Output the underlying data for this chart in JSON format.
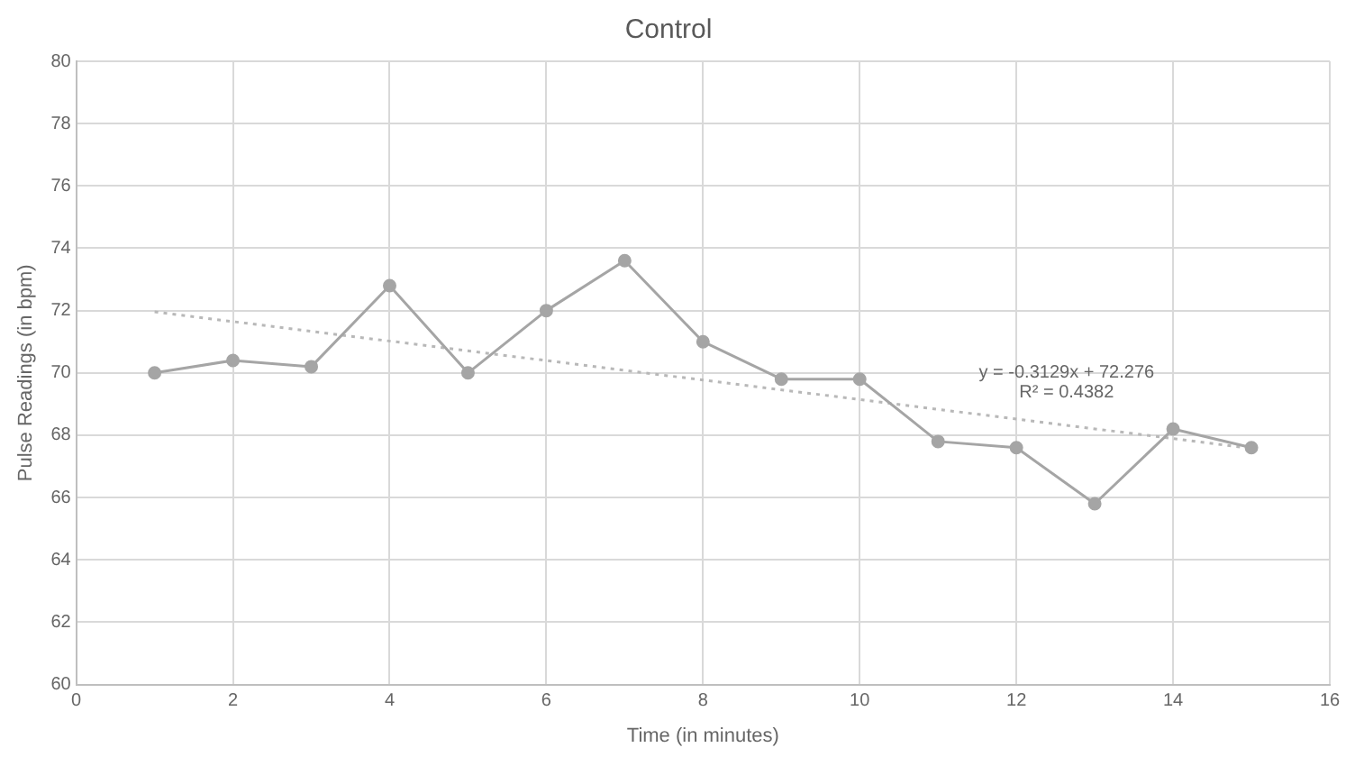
{
  "chart_data": {
    "type": "line",
    "title": "Control",
    "xlabel": "Time (in minutes)",
    "ylabel": "Pulse Readings (in bpm)",
    "x": [
      1,
      2,
      3,
      4,
      5,
      6,
      7,
      8,
      9,
      10,
      11,
      12,
      13,
      14,
      15
    ],
    "series": [
      {
        "color": "#a5a5a5",
        "values": [
          70.0,
          70.4,
          70.2,
          72.8,
          70.0,
          72.0,
          73.6,
          71.0,
          69.8,
          69.8,
          67.8,
          67.6,
          65.8,
          68.2,
          67.6
        ],
        "marker": "circle",
        "line_style": "solid"
      },
      {
        "color": "#b8b8b8",
        "x": [
          1,
          15
        ],
        "values": [
          71.96,
          67.58
        ],
        "marker": "none",
        "line_style": "dotted"
      }
    ],
    "annotations": [
      "y = -0.3129x + 72.276",
      "R² = 0.4382"
    ],
    "xlim": [
      0,
      16
    ],
    "xticks": [
      0,
      2,
      4,
      6,
      8,
      10,
      12,
      14,
      16
    ],
    "ylim": [
      60,
      80
    ],
    "yticks": [
      60,
      62,
      64,
      66,
      68,
      70,
      72,
      74,
      76,
      78,
      80
    ],
    "grid": true,
    "legend": false
  }
}
